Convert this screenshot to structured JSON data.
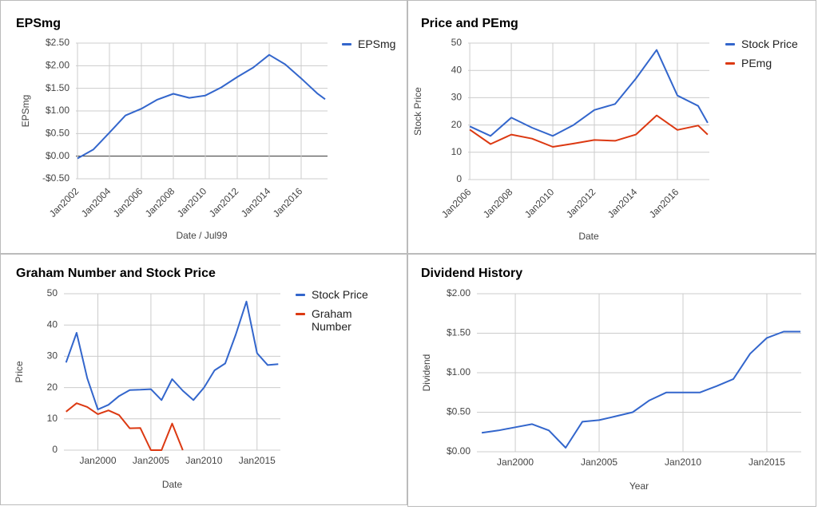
{
  "chart_data": [
    {
      "type": "line",
      "title": "EPSmg",
      "x_label": "Date / Jul99",
      "y_label": "EPSmg",
      "legend": "right",
      "grid": true,
      "x": [
        2002,
        2003,
        2004,
        2005,
        2006,
        2007,
        2008,
        2009,
        2010,
        2011,
        2012,
        2013,
        2014,
        2015,
        2016,
        2017,
        2017.5
      ],
      "series": [
        {
          "name": "EPSmg",
          "color": "#3366cc",
          "values": [
            -0.05,
            0.15,
            0.52,
            0.9,
            1.05,
            1.25,
            1.38,
            1.29,
            1.34,
            1.52,
            1.75,
            1.96,
            2.24,
            2.03,
            1.72,
            1.39,
            1.26
          ]
        }
      ],
      "xlim": [
        2001.9,
        2017.65
      ],
      "xticks": [
        {
          "value": 2002,
          "label": "Jan2002"
        },
        {
          "value": 2004,
          "label": "Jan2004"
        },
        {
          "value": 2006,
          "label": "Jan2006"
        },
        {
          "value": 2008,
          "label": "Jan2008"
        },
        {
          "value": 2010,
          "label": "Jan2010"
        },
        {
          "value": 2012,
          "label": "Jan2012"
        },
        {
          "value": 2014,
          "label": "Jan2014"
        },
        {
          "value": 2016,
          "label": "Jan2016"
        }
      ],
      "ylim": [
        -0.5,
        2.5
      ],
      "yticks": [
        {
          "value": -0.5,
          "label": "-$0.50"
        },
        {
          "value": 0,
          "label": "$0.00"
        },
        {
          "value": 0.5,
          "label": "$0.50"
        },
        {
          "value": 1,
          "label": "$1.00"
        },
        {
          "value": 1.5,
          "label": "$1.50"
        },
        {
          "value": 2,
          "label": "$2.00"
        },
        {
          "value": 2.5,
          "label": "$2.50"
        }
      ]
    },
    {
      "type": "line",
      "title": "Price and PEmg",
      "x_label": "Date",
      "y_label": "Stock Price",
      "legend": "right",
      "grid": true,
      "x": [
        2006,
        2007,
        2008,
        2009,
        2010,
        2011,
        2012,
        2013,
        2014,
        2015,
        2016,
        2017,
        2017.46
      ],
      "series": [
        {
          "name": "Stock Price",
          "color": "#3366cc",
          "values": [
            19.5,
            16,
            22.7,
            19,
            16,
            20,
            25.5,
            27.7,
            37,
            47.5,
            30.8,
            27,
            20.8
          ]
        },
        {
          "name": "PEmg",
          "color": "#dc3912",
          "values": [
            18.3,
            13,
            16.5,
            15,
            12,
            13.2,
            14.5,
            14.2,
            16.5,
            23.5,
            18.2,
            19.8,
            16.5
          ]
        }
      ],
      "xlim": [
        2005.92,
        2017.54
      ],
      "xticks": [
        {
          "value": 2006,
          "label": "Jan2006"
        },
        {
          "value": 2008,
          "label": "Jan2008"
        },
        {
          "value": 2010,
          "label": "Jan2010"
        },
        {
          "value": 2012,
          "label": "Jan2012"
        },
        {
          "value": 2014,
          "label": "Jan2014"
        },
        {
          "value": 2016,
          "label": "Jan2016"
        }
      ],
      "ylim": [
        0,
        50
      ],
      "yticks": [
        0,
        10,
        20,
        30,
        40,
        50
      ]
    },
    {
      "type": "line",
      "title": "Graham Number and Stock Price",
      "x_label": "Date",
      "y_label": "Price",
      "legend": "right",
      "grid": true,
      "x": [
        1997,
        1998,
        1999,
        2000,
        2001,
        2002,
        2003,
        2004,
        2005,
        2006,
        2007,
        2008,
        2009,
        2010,
        2011,
        2012,
        2013,
        2014,
        2015,
        2016,
        2017
      ],
      "series": [
        {
          "name": "Stock Price",
          "color": "#3366cc",
          "values": [
            28,
            37.5,
            23,
            13,
            14.5,
            17.3,
            19.2,
            19.3,
            19.5,
            16,
            22.7,
            19,
            16,
            20,
            25.5,
            27.7,
            37,
            47.5,
            31,
            27.2,
            27.5
          ]
        },
        {
          "name": "Graham Number",
          "color": "#dc3912",
          "values": [
            12.3,
            15,
            13.8,
            11.5,
            12.7,
            11.2,
            7,
            7.1,
            0,
            0,
            8.5,
            0,
            null,
            null,
            null,
            null,
            null,
            null,
            null,
            null,
            null
          ]
        }
      ],
      "xlim": [
        1996.8,
        2017.2
      ],
      "xticks": [
        {
          "value": 2000,
          "label": "Jan2000"
        },
        {
          "value": 2005,
          "label": "Jan2005"
        },
        {
          "value": 2010,
          "label": "Jan2010"
        },
        {
          "value": 2015,
          "label": "Jan2015"
        }
      ],
      "ylim": [
        0,
        50
      ],
      "yticks": [
        0,
        10,
        20,
        30,
        40,
        50
      ]
    },
    {
      "type": "line",
      "title": "Dividend History",
      "x_label": "Year",
      "y_label": "Dividend",
      "grid": true,
      "x": [
        1998,
        1999,
        2000,
        2001,
        2002,
        2003,
        2004,
        2005,
        2006,
        2007,
        2008,
        2009,
        2010,
        2011,
        2012,
        2013,
        2014,
        2015,
        2016,
        2017
      ],
      "values": [
        0.24,
        0.27,
        0.31,
        0.35,
        0.27,
        0.05,
        0.38,
        0.4,
        0.45,
        0.5,
        0.65,
        0.75,
        0.75,
        0.75,
        0.83,
        0.92,
        1.24,
        1.44,
        1.52,
        1.52
      ],
      "color": "#3366cc",
      "xlim": [
        1997.71,
        2017.05
      ],
      "xticks": [
        {
          "value": 2000,
          "label": "Jan2000"
        },
        {
          "value": 2005,
          "label": "Jan2005"
        },
        {
          "value": 2010,
          "label": "Jan2010"
        },
        {
          "value": 2015,
          "label": "Jan2015"
        }
      ],
      "ylim": [
        0,
        2
      ],
      "yticks": [
        {
          "value": 0,
          "label": "$0.00"
        },
        {
          "value": 0.5,
          "label": "$0.50"
        },
        {
          "value": 1,
          "label": "$1.00"
        },
        {
          "value": 1.5,
          "label": "$1.50"
        },
        {
          "value": 2,
          "label": "$2.00"
        }
      ]
    }
  ]
}
